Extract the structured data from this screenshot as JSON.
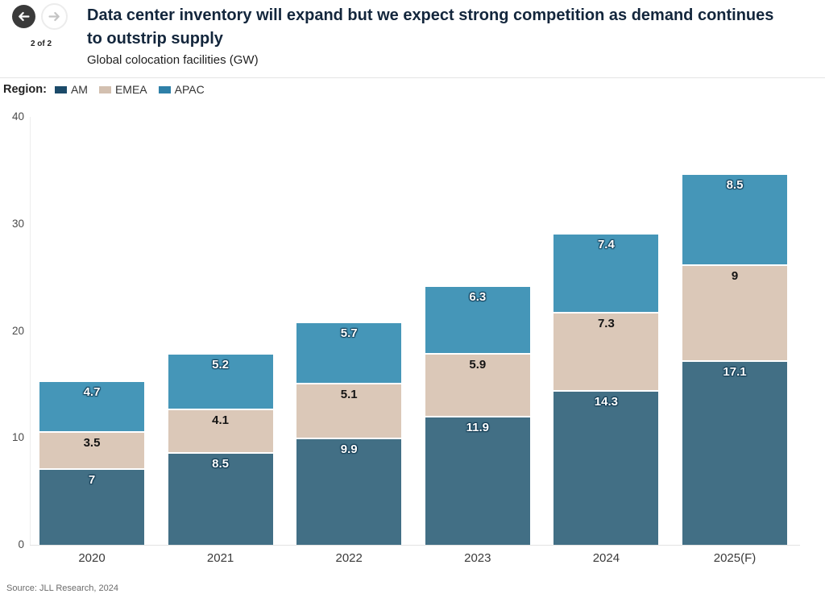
{
  "header": {
    "page_indicator": "2 of 2",
    "title": "Data center inventory will expand but we expect strong competition as demand continues to outstrip supply",
    "subtitle": "Global colocation facilities (GW)"
  },
  "legend": {
    "label": "Region:",
    "items": [
      {
        "label": "AM",
        "swatch_color": "#1b4a69"
      },
      {
        "label": "EMEA",
        "swatch_color": "#d3c0b0"
      },
      {
        "label": "APAC",
        "swatch_color": "#2e80a8"
      }
    ]
  },
  "chart_data": {
    "type": "bar",
    "stacked": true,
    "title": "Data center inventory will expand but we expect strong competition as demand continues to outstrip supply",
    "subtitle": "Global colocation facilities (GW)",
    "categories": [
      "2020",
      "2021",
      "2022",
      "2023",
      "2024",
      "2025(F)"
    ],
    "series": [
      {
        "name": "AM",
        "color": "#426f85",
        "label_style": "light",
        "values": [
          7,
          8.5,
          9.9,
          11.9,
          14.3,
          17.1
        ]
      },
      {
        "name": "EMEA",
        "color": "#dbc8b8",
        "label_style": "dark",
        "values": [
          3.5,
          4.1,
          5.1,
          5.9,
          7.3,
          9
        ]
      },
      {
        "name": "APAC",
        "color": "#4596b8",
        "label_style": "light",
        "values": [
          4.7,
          5.2,
          5.7,
          6.3,
          7.4,
          8.5
        ]
      }
    ],
    "totals": [
      15.2,
      17.8,
      20.7,
      24.1,
      29.0,
      34.6
    ],
    "ylim": [
      0,
      40
    ],
    "yticks": [
      0,
      10,
      20,
      30,
      40
    ],
    "grid": false,
    "legend_position": "top-left",
    "unit": "GW"
  },
  "footer": {
    "source": "Source: JLL Research, 2024"
  }
}
